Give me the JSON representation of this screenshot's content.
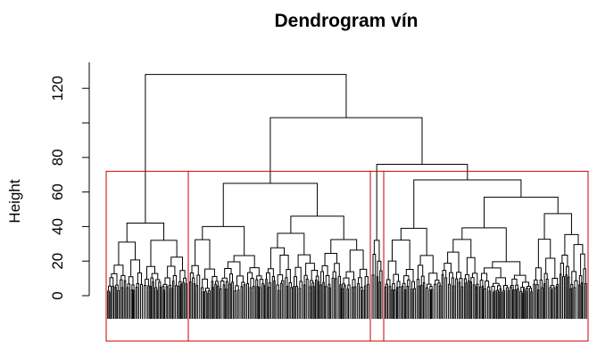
{
  "chart_data": {
    "type": "dendrogram",
    "title": "Dendrogram vín",
    "xlabel": "",
    "ylabel": "Height",
    "ylim": [
      -13,
      130
    ],
    "y_ticks": [
      0,
      20,
      40,
      60,
      80,
      120
    ],
    "y_tick_labels": [
      "0",
      "20",
      "40",
      "60",
      "80",
      "120"
    ],
    "cut_height": 72,
    "cluster_boxes": 4,
    "box_color": "#cc0000",
    "line_color": "#000000",
    "merges_top": [
      {
        "height": 128,
        "left": "cluster-1",
        "right": "rest"
      },
      {
        "height": 103,
        "left": "cluster-2",
        "right": "cluster-3+4"
      },
      {
        "height": 76,
        "left": "cluster-3",
        "right": "cluster-4"
      }
    ],
    "cluster_subtrees": [
      {
        "name": "cluster-1",
        "root_height": 42,
        "sub_heights": [
          31,
          32
        ]
      },
      {
        "name": "cluster-2",
        "root_height": 65,
        "sub_heights": [
          40,
          46
        ]
      },
      {
        "name": "cluster-3",
        "root_height": 32,
        "sub_heights": [
          24,
          20
        ]
      },
      {
        "name": "cluster-4",
        "root_height": 67,
        "sub_heights": [
          39,
          57
        ]
      }
    ]
  }
}
